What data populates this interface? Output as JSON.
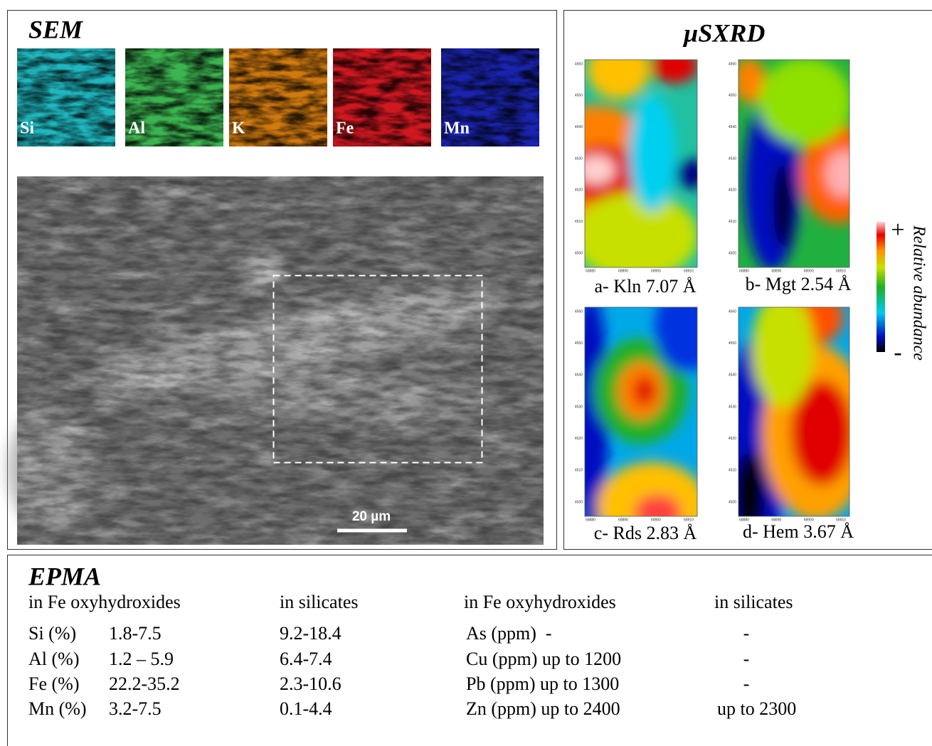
{
  "sem": {
    "title": "SEM",
    "element_maps": [
      "Si",
      "Al",
      "K",
      "Fe",
      "Mn"
    ],
    "scale_bar": "20 µm"
  },
  "usxrd": {
    "title": "µSXRD",
    "panels": [
      "a- Kln 7.07 Å",
      "b- Mgt 2.54 Å",
      "c- Rds 2.83 Å",
      "d- Hem 3.67 Å"
    ],
    "y_ticks": [
      "4560",
      "4550",
      "4540",
      "4530",
      "4520",
      "4510",
      "4500"
    ],
    "x_ticks": [
      "68880",
      "68890",
      "68900",
      "68910"
    ],
    "colorbar": {
      "label": "Relative abundance",
      "max": "+",
      "min": "-"
    }
  },
  "epma": {
    "title": "EPMA",
    "headers": [
      "in Fe oxyhydroxides",
      "in silicates",
      "in Fe oxyhydroxides",
      "in silicates"
    ],
    "rows": [
      [
        "Si (%)",
        "1.8-7.5",
        "9.2-18.4",
        "As (ppm)  -",
        "-"
      ],
      [
        "Al (%)",
        "1.2 – 5.9",
        "6.4-7.4",
        "Cu (ppm) up to 1200",
        "-"
      ],
      [
        "Fe (%)",
        "22.2-35.2",
        "2.3-10.6",
        "Pb (ppm) up to 1300",
        "-"
      ],
      [
        "Mn (%)",
        "3.2-7.5",
        "0.1-4.4",
        "Zn (ppm) up to 2400",
        "up to 2300"
      ]
    ]
  }
}
